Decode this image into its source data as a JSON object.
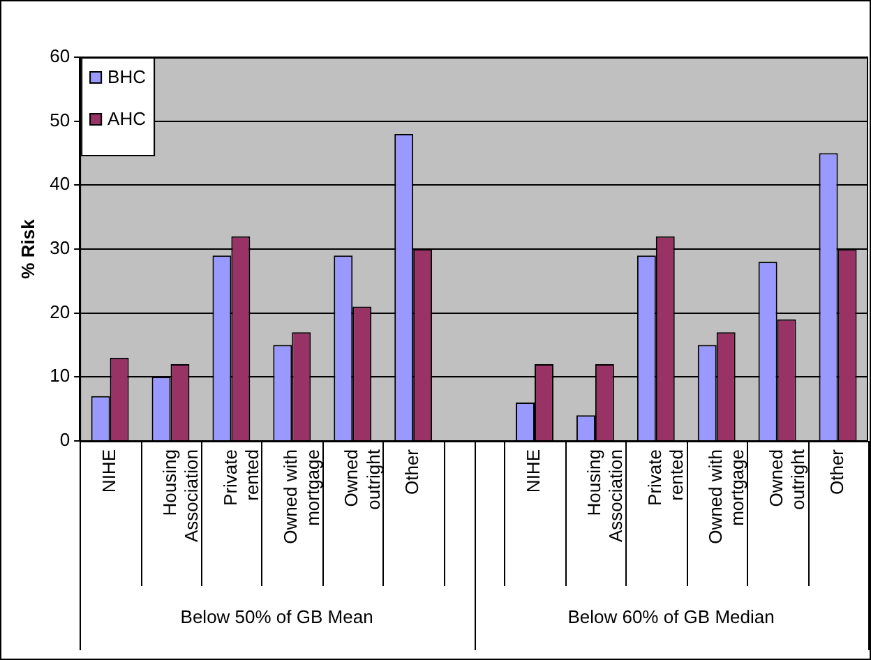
{
  "chart_data": {
    "type": "bar",
    "ylabel": "% Risk",
    "categories": [
      "NIHE",
      "Housing Association",
      "Private rented",
      "Owned with mortgage",
      "Owned outright",
      "Other",
      null,
      "NIHE",
      "Housing Association",
      "Private rented",
      "Owned with mortgage",
      "Owned outright",
      "Other"
    ],
    "series": [
      {
        "name": "BHC",
        "color": "#9999ff",
        "values": [
          7,
          10,
          29,
          15,
          29,
          48,
          null,
          6,
          4,
          29,
          15,
          28,
          45
        ]
      },
      {
        "name": "AHC",
        "color": "#993366",
        "values": [
          13,
          12,
          32,
          17,
          21,
          30,
          null,
          12,
          12,
          32,
          17,
          19,
          30
        ]
      }
    ],
    "annotations": [
      "Below 50% of GB Mean",
      "Below 60% of GB Median"
    ],
    "ylim": [
      0,
      60
    ],
    "yticks": [
      0,
      10,
      20,
      30,
      40,
      50,
      60
    ],
    "grid": "y",
    "legend": "top left"
  }
}
